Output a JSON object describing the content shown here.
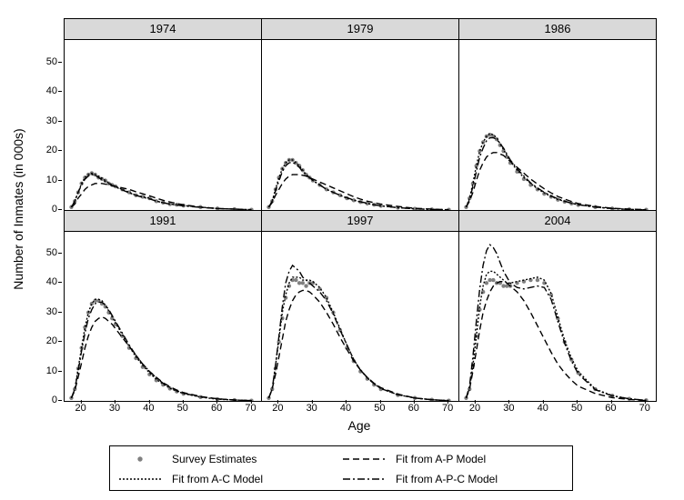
{
  "figure_width": 752,
  "figure_height": 550,
  "y_label": "Number of Inmates (in 000s)",
  "x_label": "Age",
  "ylim": [
    0,
    58
  ],
  "xlim": [
    15,
    73
  ],
  "y_ticks": [
    0,
    10,
    20,
    30,
    40,
    50
  ],
  "x_ticks": [
    20,
    30,
    40,
    50,
    60,
    70
  ],
  "panel_header_bg": "#d9d9d9",
  "background_color": "#ffffff",
  "series": {
    "survey": {
      "label": "Survey Estimates",
      "type": "marker",
      "color": "#808080",
      "marker": "circle",
      "marker_size": 2.2
    },
    "ap": {
      "label": "Fit from A-P Model",
      "type": "line",
      "color": "#000000",
      "dash": "7,4",
      "width": 1.4
    },
    "ac": {
      "label": "Fit from A-C Model",
      "type": "line",
      "color": "#000000",
      "dash": "2,2",
      "width": 1.4
    },
    "apc": {
      "label": "Fit from A-P-C Model",
      "type": "line",
      "color": "#000000",
      "dash": "8,3,2,3",
      "width": 1.4
    }
  },
  "panels": [
    {
      "title": "1974",
      "survey_x": [
        17,
        18,
        19,
        20,
        21,
        22,
        23,
        24,
        25,
        26,
        27,
        28,
        29,
        30,
        32,
        34,
        36,
        38,
        40,
        42,
        44,
        46,
        48,
        50,
        55,
        60,
        65,
        70
      ],
      "survey_y": [
        1,
        3,
        6,
        9,
        11,
        12,
        12.5,
        12,
        11,
        10.5,
        10,
        9,
        8.5,
        8,
        7,
        6,
        5,
        4.5,
        4,
        3,
        2.5,
        2,
        1.8,
        1.5,
        1,
        0.5,
        0.3,
        0.1
      ],
      "ap_y": [
        1,
        2,
        4,
        5.5,
        7,
        8,
        8.5,
        9,
        9,
        9,
        8.8,
        8.5,
        8.2,
        8,
        7.5,
        7,
        6.2,
        5.5,
        4.8,
        4,
        3.3,
        2.7,
        2.2,
        1.8,
        1,
        0.5,
        0.3,
        0.1
      ],
      "ac_y": [
        1,
        3,
        6,
        9,
        11,
        12,
        12.5,
        12,
        11.5,
        10.8,
        10,
        9.2,
        8.5,
        8,
        7,
        6,
        5,
        4.5,
        4,
        3,
        2.5,
        2,
        1.8,
        1.5,
        1,
        0.5,
        0.3,
        0.1
      ],
      "apc_y": [
        1,
        3,
        6,
        8.5,
        10.5,
        11.5,
        12,
        11.8,
        11,
        10.3,
        9.6,
        9,
        8.3,
        7.8,
        6.8,
        5.8,
        5,
        4.3,
        3.8,
        3,
        2.5,
        2,
        1.7,
        1.4,
        0.9,
        0.5,
        0.3,
        0.1
      ]
    },
    {
      "title": "1979",
      "survey_x": [
        17,
        18,
        19,
        20,
        21,
        22,
        23,
        24,
        25,
        26,
        27,
        28,
        29,
        30,
        32,
        34,
        36,
        38,
        40,
        42,
        44,
        46,
        48,
        50,
        55,
        60,
        65,
        70
      ],
      "survey_y": [
        1,
        3,
        7,
        11,
        14,
        16,
        17,
        17,
        16,
        15,
        13.5,
        12,
        11,
        10,
        8.5,
        7,
        6,
        5,
        4,
        3.3,
        2.7,
        2.2,
        1.8,
        1.4,
        0.8,
        0.4,
        0.2,
        0.1
      ],
      "ap_y": [
        1,
        2.5,
        5,
        7,
        9,
        10.5,
        11.5,
        12,
        12,
        12,
        11.8,
        11.5,
        11,
        10.5,
        9.5,
        8.5,
        7.5,
        6.5,
        5.5,
        4.5,
        3.7,
        3,
        2.5,
        2,
        1.2,
        0.6,
        0.3,
        0.1
      ],
      "ac_y": [
        1,
        3,
        7,
        11,
        14,
        16,
        17,
        17,
        16,
        15,
        13.5,
        12,
        11,
        10,
        8.5,
        7,
        6,
        5,
        4,
        3.3,
        2.7,
        2.2,
        1.8,
        1.4,
        0.8,
        0.4,
        0.2,
        0.1
      ],
      "apc_y": [
        1,
        3,
        6.5,
        10,
        13,
        15,
        16,
        16.2,
        15.5,
        14.5,
        13,
        12,
        11,
        10,
        8.5,
        7,
        6,
        5,
        4.2,
        3.4,
        2.8,
        2.3,
        1.8,
        1.4,
        0.8,
        0.4,
        0.2,
        0.1
      ]
    },
    {
      "title": "1986",
      "survey_x": [
        17,
        18,
        19,
        20,
        21,
        22,
        23,
        24,
        25,
        26,
        27,
        28,
        29,
        30,
        32,
        34,
        36,
        38,
        40,
        42,
        44,
        46,
        48,
        50,
        55,
        60,
        65,
        70
      ],
      "survey_y": [
        1,
        4,
        9,
        15,
        20,
        23,
        25,
        25.5,
        25,
        24,
        22,
        20,
        18,
        16,
        13,
        10.5,
        8.5,
        7,
        5.5,
        4.5,
        3.5,
        2.8,
        2.2,
        1.7,
        1,
        0.5,
        0.2,
        0.1
      ],
      "ap_y": [
        1,
        3,
        6,
        10,
        13.5,
        16,
        18,
        19,
        19.5,
        19.5,
        19,
        18.5,
        17.5,
        16.5,
        14.5,
        12.5,
        10.5,
        8.8,
        7.2,
        5.8,
        4.6,
        3.7,
        2.9,
        2.2,
        1.2,
        0.6,
        0.3,
        0.1
      ],
      "ac_y": [
        1,
        4,
        9,
        15,
        20,
        23,
        25,
        26,
        25.5,
        24.5,
        22.5,
        20.5,
        18.5,
        16.5,
        13.5,
        11,
        9,
        7.2,
        5.8,
        4.6,
        3.6,
        2.9,
        2.3,
        1.8,
        1,
        0.5,
        0.2,
        0.1
      ],
      "apc_y": [
        1,
        3.5,
        8,
        13,
        18,
        21,
        23.5,
        24.5,
        24.5,
        24,
        22.5,
        21,
        19,
        17,
        14,
        11.5,
        9.2,
        7.5,
        6,
        4.8,
        3.8,
        3,
        2.3,
        1.8,
        1,
        0.5,
        0.2,
        0.1
      ]
    },
    {
      "title": "1991",
      "survey_x": [
        17,
        18,
        19,
        20,
        21,
        22,
        23,
        24,
        25,
        26,
        27,
        28,
        29,
        30,
        32,
        34,
        36,
        38,
        40,
        42,
        44,
        46,
        48,
        50,
        55,
        60,
        65,
        70
      ],
      "survey_y": [
        1,
        4,
        11,
        18,
        25,
        30,
        33,
        34,
        34,
        33,
        32,
        30,
        28,
        26,
        22,
        18,
        14.5,
        11.5,
        9,
        7,
        5.5,
        4.2,
        3.2,
        2.4,
        1.3,
        0.6,
        0.3,
        0.1
      ],
      "ap_y": [
        1,
        3.5,
        8,
        13,
        18,
        22,
        25,
        27,
        28,
        28.5,
        28,
        27,
        26,
        24.5,
        21.5,
        18.5,
        15.5,
        12.5,
        10,
        8,
        6.2,
        4.8,
        3.7,
        2.8,
        1.5,
        0.7,
        0.3,
        0.1
      ],
      "ac_y": [
        1,
        4,
        11,
        18,
        25,
        30,
        33,
        34.5,
        34.5,
        34,
        32.5,
        30.5,
        28.5,
        26.5,
        22.5,
        18.5,
        15,
        12,
        9.5,
        7.3,
        5.7,
        4.3,
        3.3,
        2.5,
        1.3,
        0.6,
        0.3,
        0.1
      ],
      "apc_y": [
        1,
        4,
        10,
        17,
        23,
        28,
        31,
        33,
        33.5,
        33.5,
        32.5,
        31,
        29,
        27,
        23,
        19,
        15.5,
        12.5,
        10,
        7.8,
        6,
        4.6,
        3.5,
        2.6,
        1.4,
        0.7,
        0.3,
        0.1
      ]
    },
    {
      "title": "1997",
      "survey_x": [
        17,
        18,
        19,
        20,
        21,
        22,
        23,
        24,
        25,
        26,
        27,
        28,
        29,
        30,
        32,
        34,
        36,
        38,
        40,
        42,
        44,
        46,
        48,
        50,
        55,
        60,
        65,
        70
      ],
      "survey_y": [
        1,
        4,
        11,
        20,
        28,
        35,
        39,
        41,
        41,
        40,
        40,
        39,
        40,
        40,
        38,
        35,
        30,
        24,
        18,
        13.5,
        10,
        7.5,
        5.5,
        4,
        2,
        1,
        0.4,
        0.1
      ],
      "ap_y": [
        1,
        4,
        9,
        15,
        21,
        27,
        31,
        34,
        36,
        37,
        37.5,
        37.5,
        37,
        36,
        33.5,
        30,
        26,
        21.5,
        17.5,
        13.5,
        10.5,
        8,
        6,
        4.5,
        2.3,
        1,
        0.4,
        0.1
      ],
      "ac_y": [
        1,
        4,
        12,
        21,
        30,
        36,
        40,
        42,
        42,
        42,
        41,
        41,
        41,
        40.5,
        38.5,
        35,
        30,
        24.5,
        19,
        14,
        10.5,
        7.8,
        5.8,
        4.2,
        2.1,
        1,
        0.4,
        0.1
      ],
      "apc_y": [
        1,
        4,
        12,
        22,
        32,
        40,
        44,
        46,
        45,
        44,
        42,
        41,
        40,
        39,
        37,
        34,
        29.5,
        24,
        19,
        14,
        10.5,
        7.8,
        5.8,
        4.2,
        2.1,
        1,
        0.4,
        0.1
      ]
    },
    {
      "title": "2004",
      "survey_x": [
        17,
        18,
        19,
        20,
        21,
        22,
        23,
        24,
        25,
        26,
        27,
        28,
        29,
        30,
        32,
        34,
        36,
        38,
        40,
        42,
        44,
        46,
        48,
        50,
        55,
        60,
        65,
        70
      ],
      "survey_y": [
        1,
        4,
        12,
        22,
        31,
        37,
        40,
        41,
        41,
        40,
        40,
        39,
        39,
        39,
        40,
        40.5,
        41,
        41,
        40,
        36,
        28,
        20,
        14,
        9.5,
        4,
        1.8,
        0.7,
        0.2
      ],
      "ap_y": [
        1,
        4,
        10,
        17,
        24,
        30,
        34,
        37,
        39,
        40,
        40.5,
        40.5,
        40,
        39,
        37,
        34,
        30,
        25.5,
        21,
        16.5,
        12.5,
        9.5,
        7,
        5,
        2.5,
        1.1,
        0.5,
        0.1
      ],
      "ac_y": [
        1,
        4,
        12,
        22,
        32,
        39,
        43,
        44,
        44,
        43,
        42,
        41,
        40,
        40,
        40.5,
        41,
        41.5,
        42,
        41,
        36.5,
        28.5,
        20.5,
        14.5,
        10,
        4,
        1.8,
        0.7,
        0.2
      ],
      "apc_y": [
        1,
        5,
        15,
        27,
        38,
        46,
        51,
        53,
        52,
        50,
        47,
        44,
        42,
        40,
        38.5,
        38,
        38.5,
        39,
        38.5,
        34.5,
        27,
        19.5,
        13.5,
        9.2,
        3.8,
        1.7,
        0.7,
        0.2
      ]
    }
  ],
  "legend_order": [
    "survey",
    "ap",
    "ac",
    "apc"
  ]
}
